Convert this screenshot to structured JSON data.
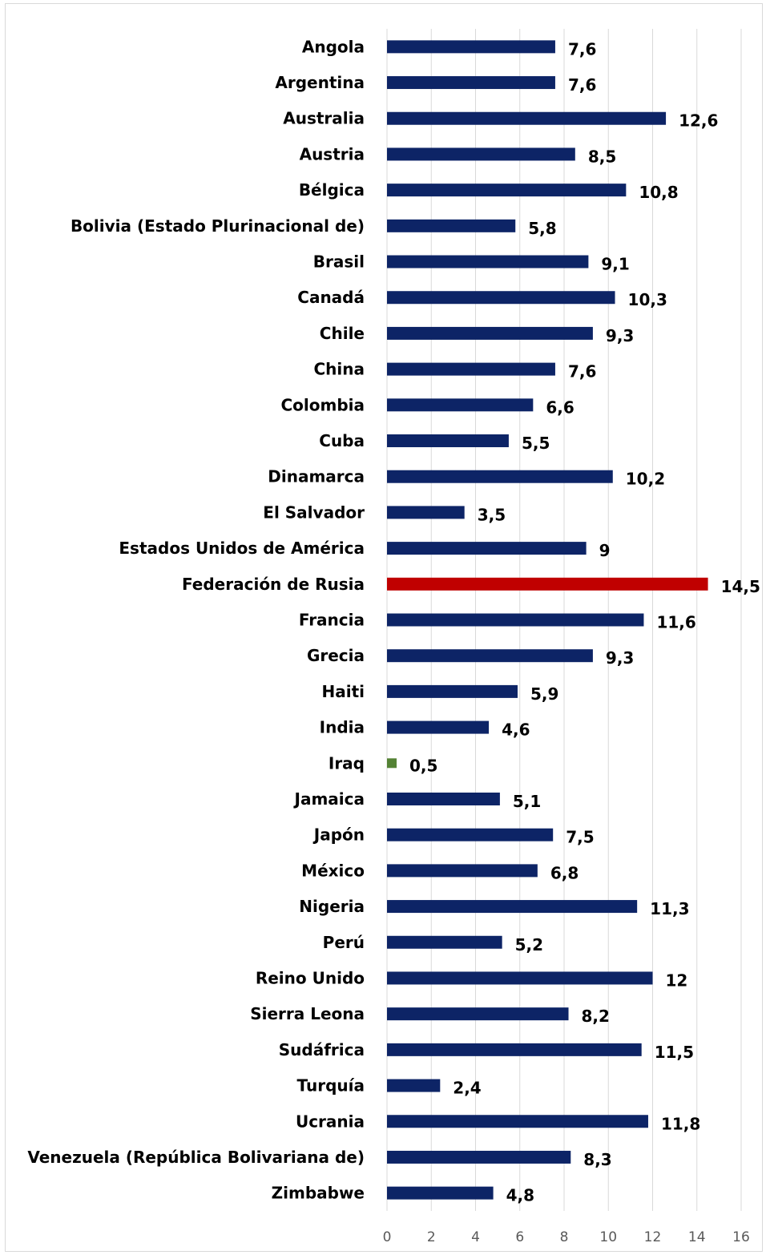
{
  "chart_data": {
    "type": "bar",
    "orientation": "horizontal",
    "categories": [
      "Angola",
      "Argentina",
      "Australia",
      "Austria",
      "Bélgica",
      "Bolivia (Estado Plurinacional de)",
      "Brasil",
      "Canadá",
      "Chile",
      "China",
      "Colombia",
      "Cuba",
      "Dinamarca",
      "El Salvador",
      "Estados Unidos de América",
      "Federación de Rusia",
      "Francia",
      "Grecia",
      "Haiti",
      "India",
      "Iraq",
      "Jamaica",
      "Japón",
      "México",
      "Nigeria",
      "Perú",
      "Reino Unido",
      "Sierra Leona",
      "Sudáfrica",
      "Turquía",
      "Ucrania",
      "Venezuela (República Bolivariana de)",
      "Zimbabwe"
    ],
    "values": [
      7.6,
      7.6,
      12.6,
      8.5,
      10.8,
      5.8,
      9.1,
      10.3,
      9.3,
      7.6,
      6.6,
      5.5,
      10.2,
      3.5,
      9,
      14.5,
      11.6,
      9.3,
      5.9,
      4.6,
      0.5,
      5.1,
      7.5,
      6.8,
      11.3,
      5.2,
      12,
      8.2,
      11.5,
      2.4,
      11.8,
      8.3,
      4.8
    ],
    "value_labels": [
      "7,6",
      "7,6",
      "12,6",
      "8,5",
      "10,8",
      "5,8",
      "9,1",
      "10,3",
      "9,3",
      "7,6",
      "6,6",
      "5,5",
      "10,2",
      "3,5",
      "9",
      "14,5",
      "11,6",
      "9,3",
      "5,9",
      "4,6",
      "0,5",
      "5,1",
      "7,5",
      "6,8",
      "11,3",
      "5,2",
      "12",
      "8,2",
      "11,5",
      "2,4",
      "11,8",
      "8,3",
      "4,8"
    ],
    "title": "",
    "xlabel": "",
    "ylabel": "",
    "xlim": [
      0,
      16
    ],
    "xticks": [
      "0",
      "2",
      "4",
      "6",
      "8",
      "10",
      "12",
      "14",
      "16"
    ],
    "grid": "vertical",
    "legend": "none",
    "colors": {
      "default": "#0d2466",
      "max": "#c00000",
      "min": "#548235"
    },
    "highlight": {
      "max_category": "Federación de Rusia",
      "min_category": "Iraq"
    }
  }
}
